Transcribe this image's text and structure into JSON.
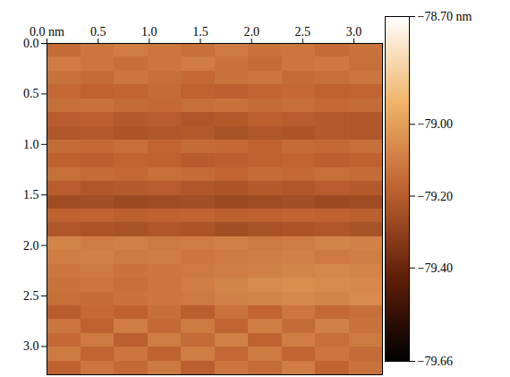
{
  "chart_data": {
    "type": "heatmap",
    "xlim": [
      0,
      3.28
    ],
    "ylim": [
      0,
      3.28
    ],
    "xticks": [
      {
        "value": 0,
        "label": "0.0 nm"
      },
      {
        "value": 0.5,
        "label": "0.5"
      },
      {
        "value": 1,
        "label": "1.0"
      },
      {
        "value": 1.5,
        "label": "1.5"
      },
      {
        "value": 2,
        "label": "2.0"
      },
      {
        "value": 2.5,
        "label": "2.5"
      },
      {
        "value": 3,
        "label": "3.0"
      }
    ],
    "yticks": [
      {
        "value": 0,
        "label": "0.0"
      },
      {
        "value": 0.5,
        "label": "0.5"
      },
      {
        "value": 1,
        "label": "1.0"
      },
      {
        "value": 1.5,
        "label": "1.5"
      },
      {
        "value": 2,
        "label": "2.0"
      },
      {
        "value": 2.5,
        "label": "2.5"
      },
      {
        "value": 3,
        "label": "3.0"
      }
    ],
    "cells": [
      [
        -79.15,
        -79.12,
        -79.1,
        -79.12,
        -79.14,
        -79.11,
        -79.13,
        -79.12,
        -79.15,
        -79.13
      ],
      [
        -79.1,
        -79.12,
        -79.14,
        -79.12,
        -79.1,
        -79.13,
        -79.15,
        -79.12,
        -79.11,
        -79.14
      ],
      [
        -79.13,
        -79.15,
        -79.12,
        -79.14,
        -79.16,
        -79.13,
        -79.12,
        -79.15,
        -79.14,
        -79.12
      ],
      [
        -79.16,
        -79.18,
        -79.17,
        -79.15,
        -79.18,
        -79.19,
        -79.17,
        -79.16,
        -79.18,
        -79.17
      ],
      [
        -79.14,
        -79.13,
        -79.15,
        -79.16,
        -79.14,
        -79.13,
        -79.15,
        -79.14,
        -79.16,
        -79.15
      ],
      [
        -79.2,
        -79.19,
        -79.21,
        -79.2,
        -79.22,
        -79.21,
        -79.19,
        -79.2,
        -79.21,
        -79.22
      ],
      [
        -79.22,
        -79.21,
        -79.23,
        -79.22,
        -79.21,
        -79.24,
        -79.22,
        -79.23,
        -79.21,
        -79.22
      ],
      [
        -79.15,
        -79.16,
        -79.14,
        -79.17,
        -79.15,
        -79.16,
        -79.18,
        -79.15,
        -79.16,
        -79.14
      ],
      [
        -79.18,
        -79.19,
        -79.17,
        -79.18,
        -79.2,
        -79.19,
        -79.18,
        -79.17,
        -79.19,
        -79.18
      ],
      [
        -79.14,
        -79.15,
        -79.16,
        -79.14,
        -79.15,
        -79.17,
        -79.15,
        -79.16,
        -79.14,
        -79.15
      ],
      [
        -79.2,
        -79.22,
        -79.21,
        -79.2,
        -79.22,
        -79.23,
        -79.21,
        -79.22,
        -79.2,
        -79.21
      ],
      [
        -79.26,
        -79.25,
        -79.27,
        -79.26,
        -79.25,
        -79.27,
        -79.26,
        -79.25,
        -79.27,
        -79.26
      ],
      [
        -79.18,
        -79.17,
        -79.19,
        -79.18,
        -79.17,
        -79.19,
        -79.18,
        -79.17,
        -79.18,
        -79.19
      ],
      [
        -79.22,
        -79.23,
        -79.24,
        -79.22,
        -79.23,
        -79.25,
        -79.24,
        -79.23,
        -79.22,
        -79.24
      ],
      [
        -79.08,
        -79.1,
        -79.09,
        -79.11,
        -79.1,
        -79.09,
        -79.11,
        -79.1,
        -79.08,
        -79.09
      ],
      [
        -79.1,
        -79.09,
        -79.11,
        -79.1,
        -79.12,
        -79.11,
        -79.1,
        -79.09,
        -79.11,
        -79.1
      ],
      [
        -79.12,
        -79.11,
        -79.13,
        -79.12,
        -79.11,
        -79.1,
        -79.09,
        -79.08,
        -79.07,
        -79.08
      ],
      [
        -79.13,
        -79.12,
        -79.14,
        -79.12,
        -79.1,
        -79.08,
        -79.06,
        -79.05,
        -79.06,
        -79.07
      ],
      [
        -79.14,
        -79.15,
        -79.13,
        -79.12,
        -79.11,
        -79.09,
        -79.08,
        -79.07,
        -79.08,
        -79.06
      ],
      [
        -79.2,
        -79.16,
        -79.18,
        -79.14,
        -79.19,
        -79.13,
        -79.17,
        -79.12,
        -79.16,
        -79.14
      ],
      [
        -79.12,
        -79.18,
        -79.1,
        -79.16,
        -79.11,
        -79.17,
        -79.1,
        -79.15,
        -79.09,
        -79.13
      ],
      [
        -79.16,
        -79.11,
        -79.19,
        -79.1,
        -79.15,
        -79.09,
        -79.18,
        -79.1,
        -79.14,
        -79.11
      ],
      [
        -79.11,
        -79.17,
        -79.12,
        -79.18,
        -79.1,
        -79.16,
        -79.11,
        -79.17,
        -79.12,
        -79.15
      ],
      [
        -79.18,
        -79.12,
        -79.16,
        -79.11,
        -79.19,
        -79.12,
        -79.15,
        -79.1,
        -79.17,
        -79.13
      ]
    ],
    "colorbar": {
      "range": [
        -79.66,
        -78.7
      ],
      "ticks": [
        {
          "value": -78.7,
          "label": "−78.70 nm"
        },
        {
          "value": -79,
          "label": "−79.00"
        },
        {
          "value": -79.2,
          "label": "−79.20"
        },
        {
          "value": -79.4,
          "label": "−79.40"
        },
        {
          "value": -79.66,
          "label": "−79.66"
        }
      ]
    }
  }
}
